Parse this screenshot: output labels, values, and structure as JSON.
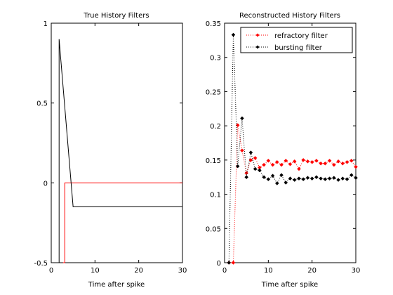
{
  "chart_data": [
    {
      "type": "line",
      "title": "True History Filters",
      "xlabel": "Time after spike",
      "ylabel": "",
      "xlim": [
        0,
        30
      ],
      "ylim": [
        -0.5,
        1
      ],
      "xticks": [
        "0",
        "10",
        "20",
        "30"
      ],
      "yticks": [
        "-0.5",
        "0",
        "0.5",
        "1"
      ],
      "series": [
        {
          "color": "#ff0000",
          "style": "solid",
          "x": [
            2.7,
            2.7,
            3.1,
            3.1,
            30
          ],
          "y": [
            -0.5,
            -0.5,
            -0.5,
            0,
            0
          ]
        },
        {
          "color": "#000000",
          "style": "solid",
          "x": [
            1.8,
            1.8,
            5,
            30
          ],
          "y": [
            -0.5,
            0.9,
            -0.15,
            -0.15
          ]
        }
      ]
    },
    {
      "type": "line",
      "title": "Reconstructed History Filters",
      "xlabel": "Time after spike",
      "ylabel": "",
      "xlim": [
        0,
        30
      ],
      "ylim": [
        0,
        0.35
      ],
      "xticks": [
        "0",
        "10",
        "20",
        "30"
      ],
      "yticks": [
        "0",
        "0.05",
        "0.1",
        "0.15",
        "0.2",
        "0.25",
        "0.3",
        "0.35"
      ],
      "legend_position": "top-right",
      "series": [
        {
          "name": "refractory filter",
          "color": "#ff0000",
          "style": "dotted-diamond",
          "x": [
            1,
            2,
            3,
            4,
            5,
            6,
            7,
            8,
            9,
            10,
            11,
            12,
            13,
            14,
            15,
            16,
            17,
            18,
            19,
            20,
            21,
            22,
            23,
            24,
            25,
            26,
            27,
            28,
            29,
            30
          ],
          "y": [
            0,
            0,
            0.201,
            0.164,
            0.131,
            0.15,
            0.153,
            0.139,
            0.143,
            0.149,
            0.143,
            0.147,
            0.143,
            0.149,
            0.144,
            0.148,
            0.137,
            0.15,
            0.148,
            0.147,
            0.149,
            0.145,
            0.145,
            0.149,
            0.143,
            0.148,
            0.145,
            0.147,
            0.149,
            0.14
          ]
        },
        {
          "name": "bursting filter",
          "color": "#000000",
          "style": "dotted-diamond",
          "x": [
            1,
            2,
            3,
            4,
            5,
            6,
            7,
            8,
            9,
            10,
            11,
            12,
            13,
            14,
            15,
            16,
            17,
            18,
            19,
            20,
            21,
            22,
            23,
            24,
            25,
            26,
            27,
            28,
            29,
            30
          ],
          "y": [
            0,
            0.333,
            0.141,
            0.211,
            0.125,
            0.161,
            0.137,
            0.135,
            0.125,
            0.122,
            0.127,
            0.116,
            0.128,
            0.117,
            0.123,
            0.121,
            0.123,
            0.122,
            0.124,
            0.123,
            0.125,
            0.123,
            0.122,
            0.123,
            0.124,
            0.121,
            0.123,
            0.122,
            0.128,
            0.124
          ]
        }
      ]
    }
  ]
}
